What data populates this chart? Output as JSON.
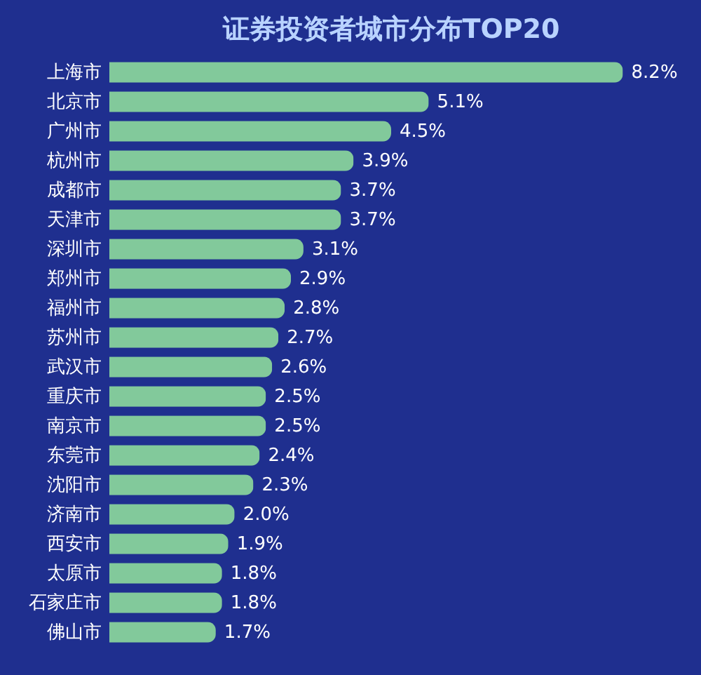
{
  "chart_data": {
    "type": "bar",
    "orientation": "horizontal",
    "title": "证券投资者城市分布TOP20",
    "categories": [
      "上海市",
      "北京市",
      "广州市",
      "杭州市",
      "成都市",
      "天津市",
      "深圳市",
      "郑州市",
      "福州市",
      "苏州市",
      "武汉市",
      "重庆市",
      "南京市",
      "东莞市",
      "沈阳市",
      "济南市",
      "西安市",
      "太原市",
      "石家庄市",
      "佛山市"
    ],
    "values": [
      8.2,
      5.1,
      4.5,
      3.9,
      3.7,
      3.7,
      3.1,
      2.9,
      2.8,
      2.7,
      2.6,
      2.5,
      2.5,
      2.4,
      2.3,
      2.0,
      1.9,
      1.8,
      1.8,
      1.7
    ],
    "value_labels": [
      "8.2%",
      "5.1%",
      "4.5%",
      "3.9%",
      "3.7%",
      "3.7%",
      "3.1%",
      "2.9%",
      "2.8%",
      "2.7%",
      "2.6%",
      "2.5%",
      "2.5%",
      "2.4%",
      "2.3%",
      "2.0%",
      "1.9%",
      "1.8%",
      "1.8%",
      "1.7%"
    ],
    "color": "#82c99b"
  }
}
